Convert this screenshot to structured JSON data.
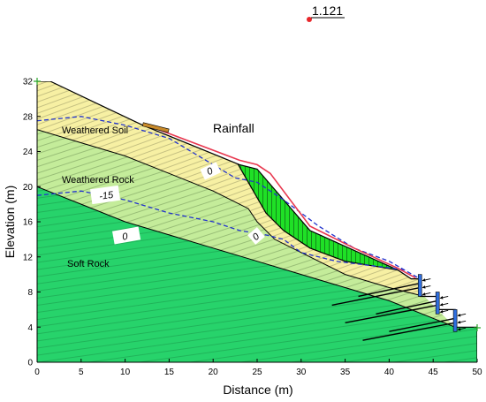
{
  "factor_of_safety": "1.121",
  "x_axis": {
    "title": "Distance (m)",
    "range": [
      0,
      50
    ],
    "ticks": [
      0,
      5,
      10,
      15,
      20,
      25,
      30,
      35,
      40,
      45,
      50
    ]
  },
  "y_axis": {
    "title": "Elevation (m)",
    "range": [
      0,
      32
    ],
    "ticks": [
      0,
      4,
      8,
      12,
      16,
      20,
      24,
      28,
      32
    ]
  },
  "labels": {
    "rainfall": "Rainfall",
    "weathered_soil": "Weathered Soil",
    "weathered_rock": "Weathered Rock",
    "soft_rock": "Soft Rock"
  },
  "contour_labels": {
    "upper_zero": "0",
    "minus_fifteen": "-15",
    "lower_zero": "0",
    "slip_zero": "0"
  },
  "colors": {
    "weathered_soil": "#f7f0a3",
    "weathered_rock": "#c4ec9a",
    "soft_rock": "#27d36b",
    "slip_mass": "#1fe026",
    "water_line": "#2233cc",
    "rainfall_line": "#e8384f",
    "fos_marker": "#e8262a",
    "anchor_head": "#2f6fe0"
  },
  "slope_surface": [
    [
      0,
      32
    ],
    [
      1.5,
      32
    ],
    [
      12,
      27
    ],
    [
      23,
      22.5
    ],
    [
      25,
      22
    ],
    [
      31,
      15
    ],
    [
      41,
      10.5
    ],
    [
      42.5,
      9.5
    ],
    [
      43.5,
      9.5
    ],
    [
      43.5,
      7.5
    ],
    [
      45.5,
      7.5
    ],
    [
      45.5,
      6
    ],
    [
      47.5,
      6
    ],
    [
      47.5,
      4
    ],
    [
      50,
      4
    ],
    [
      50,
      0
    ]
  ],
  "rock_top_boundary": [
    [
      0,
      26.5
    ],
    [
      5,
      25
    ],
    [
      10,
      23.5
    ],
    [
      15,
      21.5
    ],
    [
      20,
      19.5
    ],
    [
      24,
      17.5
    ],
    [
      25,
      16
    ],
    [
      27,
      14
    ],
    [
      30,
      12.5
    ],
    [
      35,
      10
    ],
    [
      40,
      8.5
    ],
    [
      44,
      7.5
    ]
  ],
  "soft_rock_boundary": [
    [
      0,
      20
    ],
    [
      5,
      18
    ],
    [
      10,
      16
    ],
    [
      15,
      14.5
    ],
    [
      20,
      13
    ],
    [
      25,
      11.5
    ],
    [
      30,
      10
    ],
    [
      35,
      8.5
    ],
    [
      40,
      7
    ],
    [
      45,
      5
    ],
    [
      47.5,
      4
    ]
  ],
  "slip_surface": [
    [
      22.8,
      22.6
    ],
    [
      24,
      20.5
    ],
    [
      26,
      17
    ],
    [
      28,
      15
    ],
    [
      31,
      13
    ],
    [
      35,
      11.5
    ],
    [
      38,
      11
    ],
    [
      41,
      10.5
    ]
  ],
  "water_table_upper": [
    [
      0,
      27.5
    ],
    [
      5,
      28
    ],
    [
      10,
      27
    ],
    [
      15,
      25.5
    ],
    [
      20,
      22.5
    ],
    [
      22.5,
      21
    ],
    [
      25,
      20.5
    ],
    [
      28,
      18.5
    ],
    [
      32,
      15.5
    ],
    [
      36,
      13
    ],
    [
      40,
      11.5
    ],
    [
      43.5,
      9.5
    ]
  ],
  "water_table_lower": [
    [
      0,
      19
    ],
    [
      5,
      19.5
    ],
    [
      10,
      18.5
    ],
    [
      15,
      17
    ],
    [
      20,
      16
    ],
    [
      23,
      15
    ],
    [
      26,
      14.5
    ],
    [
      28,
      14
    ],
    [
      30,
      12.5
    ],
    [
      34,
      11.5
    ],
    [
      38,
      11
    ],
    [
      42,
      10.5
    ]
  ],
  "rainfall_line": [
    [
      12.5,
      27
    ],
    [
      23,
      23
    ],
    [
      25,
      22.5
    ],
    [
      26.5,
      21.5
    ],
    [
      31,
      15.5
    ],
    [
      33,
      14.5
    ],
    [
      36,
      13
    ],
    [
      41,
      10.7
    ],
    [
      43,
      9.6
    ]
  ],
  "anchors": [
    {
      "head": [
        43.5,
        8.5
      ],
      "tail": [
        33.5,
        6.5
      ]
    },
    {
      "head": [
        45.5,
        6.5
      ],
      "tail": [
        35,
        4.5
      ]
    },
    {
      "head": [
        47.5,
        4.5
      ],
      "tail": [
        37,
        2.5
      ]
    },
    {
      "head": [
        43.5,
        9.0
      ],
      "tail": [
        36.5,
        7.5
      ]
    },
    {
      "head": [
        45.5,
        7.0
      ],
      "tail": [
        38.5,
        5.5
      ]
    },
    {
      "head": [
        47.5,
        5.0
      ],
      "tail": [
        40,
        3.5
      ]
    }
  ]
}
